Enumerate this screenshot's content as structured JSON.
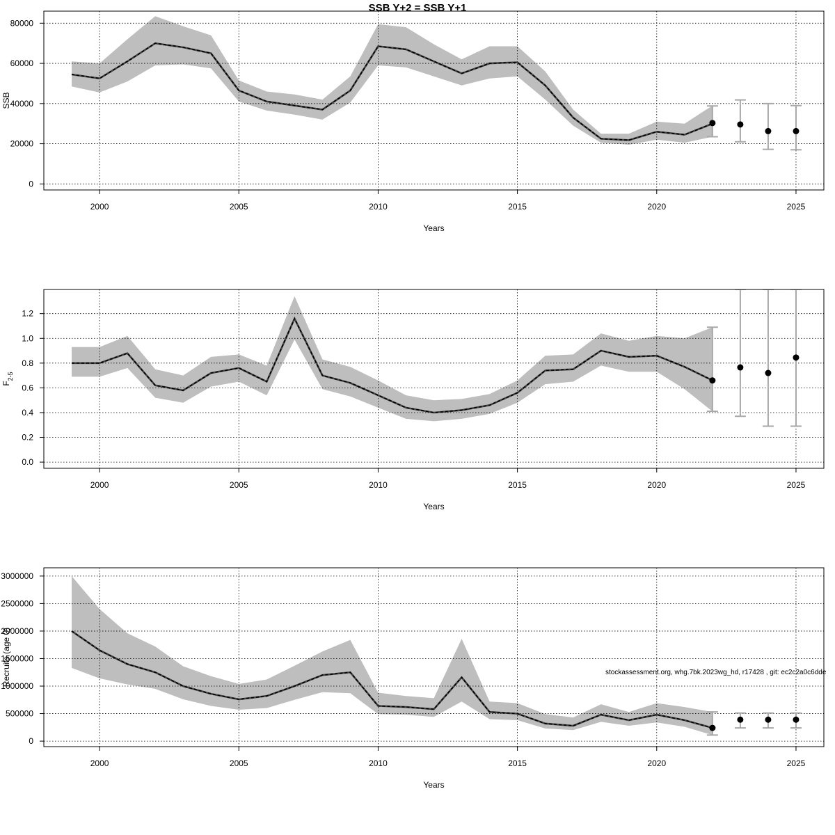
{
  "title": "SSB Y+2 = SSB Y+1",
  "watermark": "stockassessment.org, whg.7bk.2023wg_hd, r17428 , git: ec2c2a0c6dde",
  "colors": {
    "band": "#bebebe",
    "errorbar": "#a8a8a8",
    "line": "#000000",
    "grid": "#000000"
  },
  "chart_data": [
    {
      "type": "line",
      "id": "ssb",
      "ylabel": "SSB",
      "xlabel": "Years",
      "xlim": [
        1998,
        2026
      ],
      "ylim": [
        -3000,
        86000
      ],
      "xticks": [
        2000,
        2005,
        2010,
        2015,
        2020,
        2025
      ],
      "yticks": [
        0,
        20000,
        40000,
        60000,
        80000
      ],
      "ytick_labels": [
        "0",
        "20000",
        "40000",
        "60000",
        "80000"
      ],
      "grid": true,
      "years": [
        1999,
        2000,
        2001,
        2002,
        2003,
        2004,
        2005,
        2006,
        2007,
        2008,
        2009,
        2010,
        2011,
        2012,
        2013,
        2014,
        2015,
        2016,
        2017,
        2018,
        2019,
        2020,
        2021,
        2022
      ],
      "estimate": [
        54500,
        52500,
        61000,
        70000,
        68000,
        65000,
        46500,
        41000,
        39000,
        37000,
        46500,
        68500,
        67000,
        61000,
        55000,
        60000,
        60500,
        49000,
        33000,
        22500,
        21800,
        26000,
        24500,
        30000
      ],
      "lower": [
        48500,
        45500,
        51000,
        59000,
        59500,
        57500,
        41000,
        36500,
        34500,
        32000,
        40500,
        59000,
        58000,
        53500,
        49000,
        52500,
        53500,
        42000,
        29000,
        20500,
        19500,
        22000,
        20500,
        23500
      ],
      "upper": [
        61000,
        60000,
        72000,
        83500,
        78500,
        74000,
        51500,
        46000,
        44500,
        42000,
        53500,
        79500,
        78000,
        69500,
        62000,
        68500,
        68500,
        56000,
        37000,
        25000,
        25000,
        31000,
        30000,
        39000
      ],
      "forecast": [
        {
          "year": 2022,
          "value": 30300,
          "lower": 23500,
          "upper": 38800
        },
        {
          "year": 2023,
          "value": 29600,
          "lower": 21000,
          "upper": 41800
        },
        {
          "year": 2024,
          "value": 26300,
          "lower": 17200,
          "upper": 40000
        },
        {
          "year": 2025,
          "value": 26300,
          "lower": 17000,
          "upper": 39000
        }
      ]
    },
    {
      "type": "line",
      "id": "fbar",
      "ylabel": "F",
      "ylabel_sub": "2-5",
      "xlabel": "Years",
      "xlim": [
        1998,
        2026
      ],
      "ylim": [
        -0.05,
        1.395
      ],
      "xticks": [
        2000,
        2005,
        2010,
        2015,
        2020,
        2025
      ],
      "yticks": [
        0,
        0.2,
        0.4,
        0.6,
        0.8,
        1.0,
        1.2
      ],
      "ytick_labels": [
        "0.0",
        "0.2",
        "0.4",
        "0.6",
        "0.8",
        "1.0",
        "1.2"
      ],
      "grid": true,
      "years": [
        1999,
        2000,
        2001,
        2002,
        2003,
        2004,
        2005,
        2006,
        2007,
        2008,
        2009,
        2010,
        2011,
        2012,
        2013,
        2014,
        2015,
        2016,
        2017,
        2018,
        2019,
        2020,
        2021,
        2022
      ],
      "estimate": [
        0.8,
        0.8,
        0.88,
        0.62,
        0.58,
        0.72,
        0.76,
        0.65,
        1.16,
        0.7,
        0.64,
        0.54,
        0.44,
        0.4,
        0.42,
        0.46,
        0.56,
        0.74,
        0.75,
        0.9,
        0.85,
        0.86,
        0.77,
        0.66
      ],
      "lower": [
        0.69,
        0.69,
        0.76,
        0.52,
        0.48,
        0.61,
        0.65,
        0.54,
        0.99,
        0.59,
        0.53,
        0.44,
        0.35,
        0.33,
        0.35,
        0.39,
        0.48,
        0.63,
        0.65,
        0.78,
        0.73,
        0.73,
        0.59,
        0.41
      ],
      "upper": [
        0.93,
        0.93,
        1.02,
        0.75,
        0.7,
        0.85,
        0.87,
        0.78,
        1.34,
        0.83,
        0.77,
        0.66,
        0.54,
        0.5,
        0.51,
        0.55,
        0.66,
        0.86,
        0.87,
        1.04,
        0.98,
        1.02,
        1.0,
        1.09
      ],
      "forecast": [
        {
          "year": 2022,
          "value": 0.66,
          "lower": 0.41,
          "upper": 1.09
        },
        {
          "year": 2023,
          "value": 0.765,
          "lower": 0.37,
          "upper": 1.395
        },
        {
          "year": 2024,
          "value": 0.72,
          "lower": 0.29,
          "upper": 1.395
        },
        {
          "year": 2025,
          "value": 0.845,
          "lower": 0.29,
          "upper": 1.395
        }
      ]
    },
    {
      "type": "line",
      "id": "recruits",
      "ylabel": "Recruits (age 0)",
      "xlabel": "Years",
      "xlim": [
        1998,
        2026
      ],
      "ylim": [
        -100000,
        3150000
      ],
      "xticks": [
        2000,
        2005,
        2010,
        2015,
        2020,
        2025
      ],
      "yticks": [
        0,
        500000,
        1000000,
        1500000,
        2000000,
        2500000,
        3000000
      ],
      "ytick_labels": [
        "0",
        "500000",
        "1000000",
        "1500000",
        "2000000",
        "2500000",
        "3000000"
      ],
      "grid": true,
      "years": [
        1999,
        2000,
        2001,
        2002,
        2003,
        2004,
        2005,
        2006,
        2007,
        2008,
        2009,
        2010,
        2011,
        2012,
        2013,
        2014,
        2015,
        2016,
        2017,
        2018,
        2019,
        2020,
        2021,
        2022
      ],
      "estimate": [
        2000000,
        1650000,
        1400000,
        1250000,
        1000000,
        860000,
        760000,
        820000,
        1000000,
        1200000,
        1250000,
        640000,
        620000,
        580000,
        1160000,
        530000,
        500000,
        320000,
        280000,
        480000,
        380000,
        480000,
        380000,
        240000
      ],
      "lower": [
        1330000,
        1140000,
        1030000,
        950000,
        760000,
        640000,
        570000,
        600000,
        750000,
        890000,
        870000,
        490000,
        480000,
        440000,
        720000,
        400000,
        380000,
        230000,
        200000,
        350000,
        280000,
        340000,
        260000,
        110000
      ],
      "upper": [
        3000000,
        2400000,
        1960000,
        1720000,
        1360000,
        1180000,
        1040000,
        1120000,
        1370000,
        1630000,
        1840000,
        880000,
        820000,
        780000,
        1860000,
        720000,
        690000,
        490000,
        430000,
        670000,
        530000,
        690000,
        620000,
        530000
      ],
      "forecast": [
        {
          "year": 2022,
          "value": 240000,
          "lower": 110000,
          "upper": 530000
        },
        {
          "year": 2023,
          "value": 390000,
          "lower": 240000,
          "upper": 510000
        },
        {
          "year": 2024,
          "value": 390000,
          "lower": 240000,
          "upper": 510000
        },
        {
          "year": 2025,
          "value": 390000,
          "lower": 240000,
          "upper": 510000
        }
      ]
    }
  ]
}
